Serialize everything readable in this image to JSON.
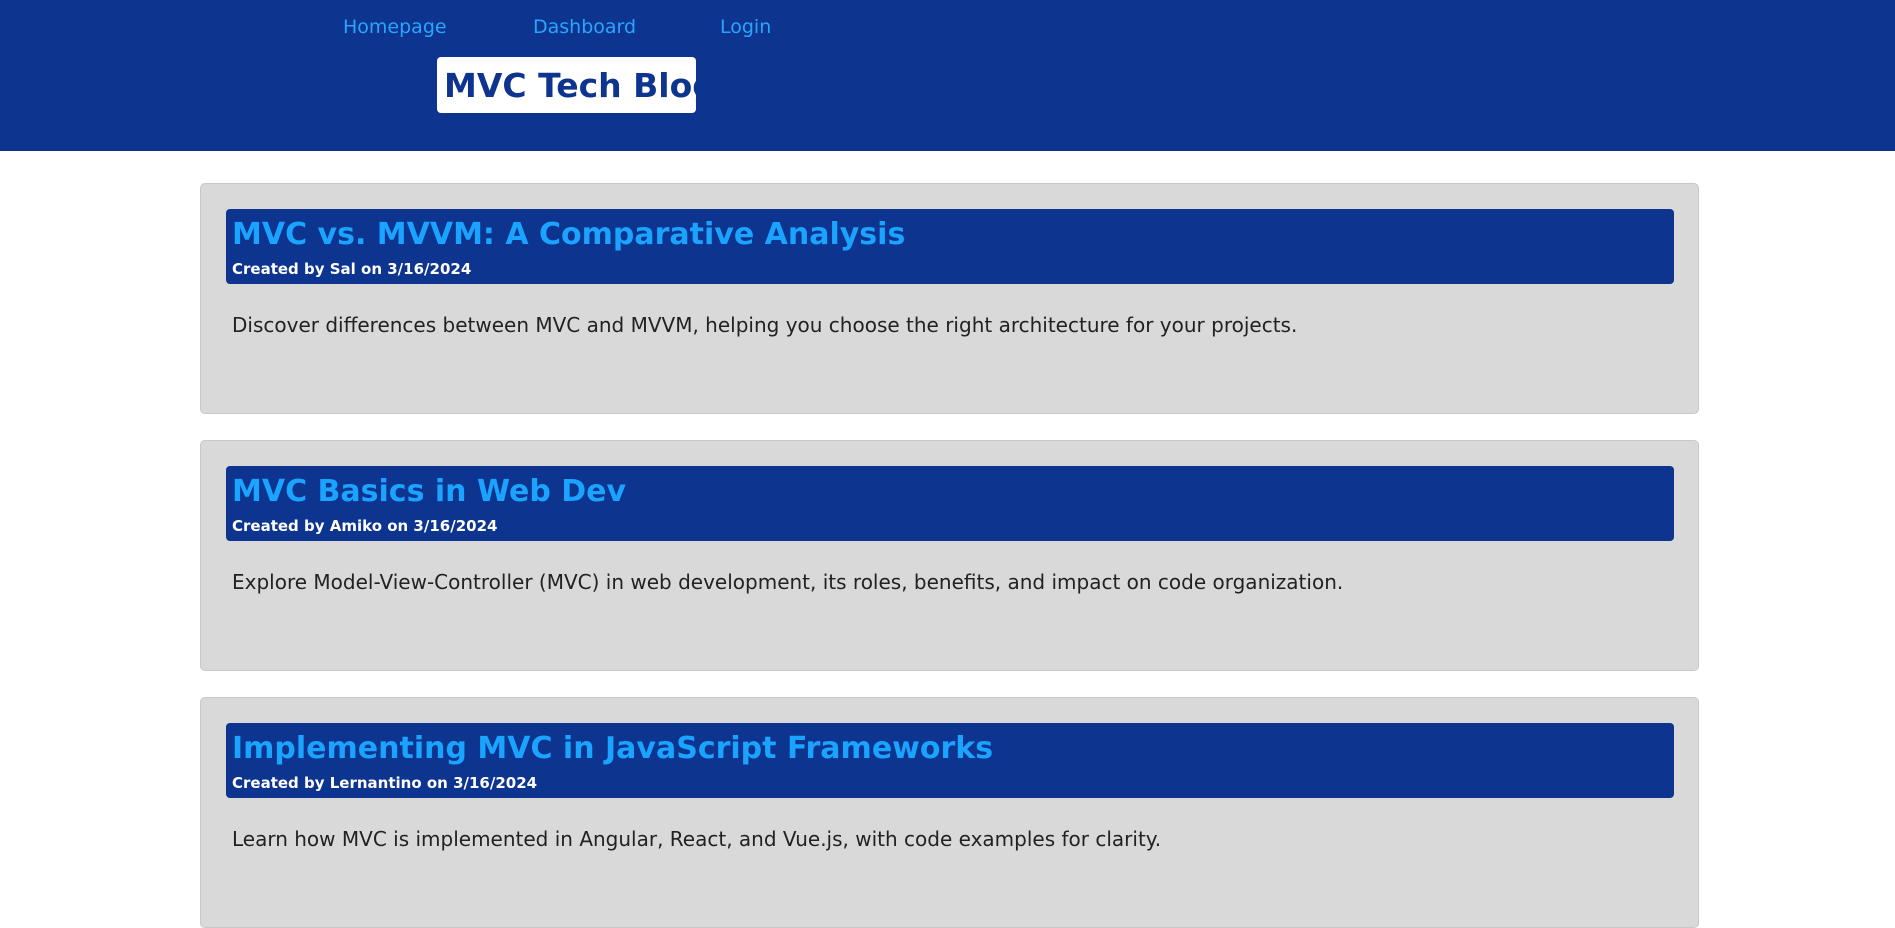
{
  "nav": {
    "homepage": "Homepage",
    "dashboard": "Dashboard",
    "login": "Login"
  },
  "site": {
    "title": "MVC Tech Blog"
  },
  "colors": {
    "header_bg": "#0d348f",
    "link": "#28a6ff",
    "card_bg": "#d9d9d9"
  },
  "posts": [
    {
      "title": "MVC vs. MVVM: A Comparative Analysis",
      "meta": "Created by Sal on 3/16/2024",
      "body": "Discover differences between MVC and MVVM, helping you choose the right architecture for your projects."
    },
    {
      "title": "MVC Basics in Web Dev",
      "meta": "Created by Amiko on 3/16/2024",
      "body": "Explore Model-View-Controller (MVC) in web development, its roles, benefits, and impact on code organization."
    },
    {
      "title": "Implementing MVC in JavaScript Frameworks",
      "meta": "Created by Lernantino on 3/16/2024",
      "body": "Learn how MVC is implemented in Angular, React, and Vue.js, with code examples for clarity."
    }
  ]
}
